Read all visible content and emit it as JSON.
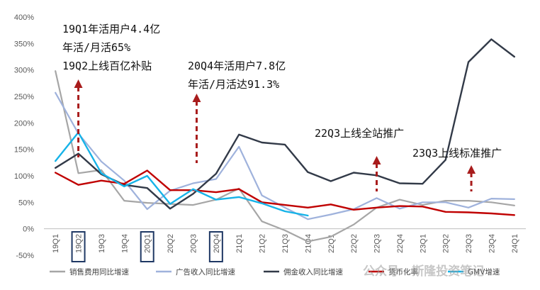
{
  "chart_data": {
    "type": "line",
    "categories": [
      "19Q1",
      "19Q2",
      "19Q3",
      "19Q4",
      "20Q1",
      "20Q2",
      "20Q3",
      "20Q4",
      "21Q1",
      "21Q2",
      "21Q3",
      "21Q4",
      "22Q1",
      "22Q2",
      "22Q3",
      "22Q4",
      "23Q1",
      "23Q2",
      "23Q3",
      "23Q4",
      "24Q1"
    ],
    "highlighted_categories": [
      "19Q2",
      "20Q1",
      "20Q4"
    ],
    "ylim": [
      -50,
      400
    ],
    "yticks": [
      -50,
      0,
      50,
      100,
      150,
      200,
      250,
      300,
      350,
      400
    ],
    "ytick_labels": [
      "-50%",
      "0%",
      "50%",
      "100%",
      "150%",
      "200%",
      "250%",
      "300%",
      "350%",
      "400%"
    ],
    "grid": false,
    "legend_position": "bottom",
    "series": [
      {
        "name": "销售费用同比增速",
        "color": "#a6a6a6",
        "width": 2.2,
        "values": [
          298,
          105,
          111,
          53,
          49,
          47,
          45,
          55,
          76,
          14,
          -3,
          -24,
          -15,
          8,
          40,
          55,
          45,
          53,
          53,
          50,
          44
        ]
      },
      {
        "name": "广告收入同比增速",
        "color": "#9fb2dc",
        "width": 2.2,
        "values": [
          257,
          180,
          127,
          91,
          37,
          72,
          86,
          94,
          155,
          63,
          40,
          18,
          27,
          37,
          58,
          38,
          50,
          50,
          40,
          57,
          56
        ]
      },
      {
        "name": "佣金收入同比增速",
        "color": "#323a48",
        "width": 2.4,
        "values": [
          115,
          142,
          103,
          83,
          77,
          38,
          66,
          104,
          178,
          163,
          159,
          107,
          90,
          106,
          101,
          86,
          85,
          130,
          315,
          358,
          325
        ]
      },
      {
        "name": "货币化率",
        "color": "#c00000",
        "width": 2.4,
        "values": [
          106,
          83,
          91,
          85,
          110,
          73,
          73,
          69,
          75,
          50,
          45,
          40,
          46,
          36,
          40,
          43,
          42,
          32,
          31,
          29,
          26
        ]
      },
      {
        "name": "GMV增速",
        "color": "#16b3e8",
        "width": 2.4,
        "values": [
          128,
          182,
          105,
          80,
          100,
          47,
          75,
          55,
          60,
          48,
          33,
          25,
          null,
          null,
          null,
          null,
          null,
          null,
          null,
          null,
          null
        ]
      }
    ],
    "annotations": [
      {
        "lines": [
          "19Q1年活用户4.4亿",
          "年活/月活65%",
          "19Q2上线百亿补贴"
        ],
        "arrow_category": "19Q2"
      },
      {
        "lines": [
          "20Q4年活用户7.8亿",
          "年活/月活达91.3%"
        ],
        "arrow_category": "20Q3"
      },
      {
        "lines": [
          "22Q3上线全站推广"
        ],
        "arrow_category": "22Q3"
      },
      {
        "lines": [
          "23Q3上线标准推广"
        ],
        "arrow_category": "23Q3"
      }
    ],
    "arrow_color": "#a81c1c"
  },
  "watermark": "公众号 · 斯隆投资笔记"
}
